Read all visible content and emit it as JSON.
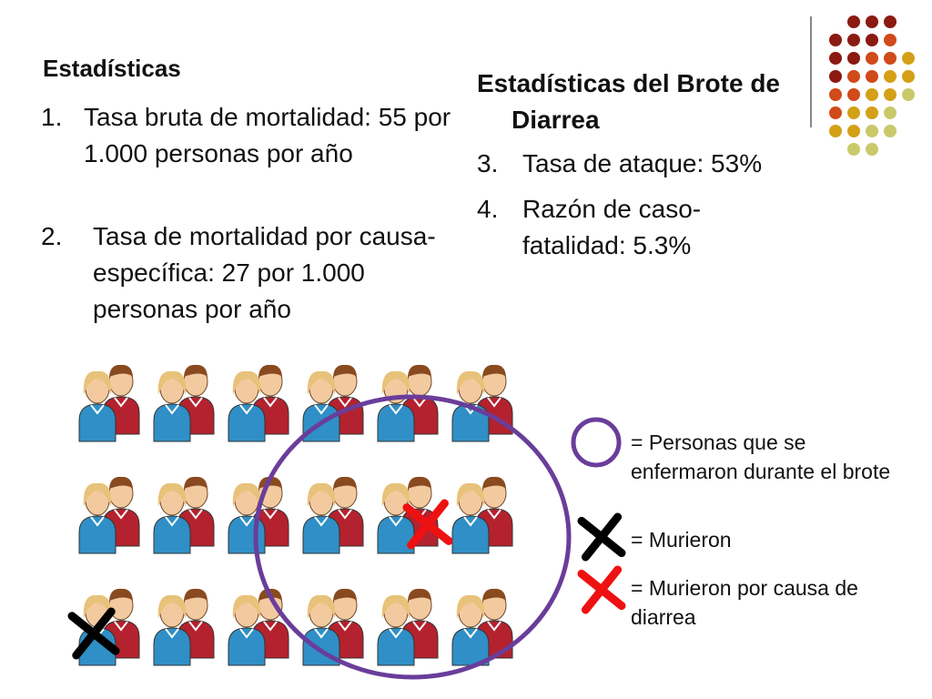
{
  "left": {
    "heading": "Estadísticas",
    "items": [
      {
        "num": "1.",
        "text": "Tasa bruta de mortalidad: 55 por 1.000 personas por año"
      },
      {
        "num": "2.",
        "text": "Tasa de mortalidad por causa-específica: 27 por 1.000 personas por año"
      }
    ]
  },
  "right": {
    "heading_line1": "Estadísticas del Brote de",
    "heading_line2": "Diarrea",
    "items": [
      {
        "num": "3.",
        "text": "Tasa de ataque: 53%"
      },
      {
        "num": "4.",
        "text": "Razón de caso-fatalidad: 5.3%"
      }
    ]
  },
  "legend": {
    "sick": "= Personas que se enfermaron durante el brote",
    "died": "= Murieron",
    "diarrhea": "= Murieron por causa de diarrea"
  },
  "grid": {
    "rows": 3,
    "cols": 6
  },
  "colors": {
    "circle": "#6a3d9a",
    "black_x": "#000000",
    "red_x": "#ee1111",
    "female_shirt": "#2f8fc6",
    "male_shirt": "#b3222e",
    "dot_dark": "#8b1a12",
    "dot_orange": "#d04a1a",
    "dot_gold": "#d4a017",
    "dot_olive": "#c9c96a"
  }
}
